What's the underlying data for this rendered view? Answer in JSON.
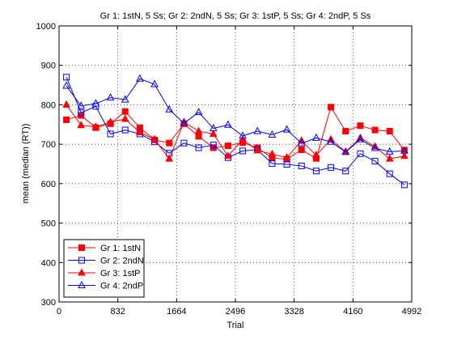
{
  "chart_data": {
    "type": "line",
    "title": "Gr 1: 1stN, 5 Ss; Gr 2: 2ndN, 5 Ss; Gr 3: 1stP, 5 Ss; Gr 4: 2ndP, 5 Ss",
    "xlabel": "Trial",
    "ylabel": "mean (median (RT))",
    "xlim": [
      0,
      4992
    ],
    "ylim": [
      300,
      1000
    ],
    "xticks": [
      0,
      832,
      1664,
      2496,
      3328,
      4160,
      4992
    ],
    "yticks": [
      300,
      400,
      500,
      600,
      700,
      800,
      900,
      1000
    ],
    "grid": "dotted",
    "legend_position": "bottom-left",
    "x": [
      104,
      312,
      520,
      728,
      936,
      1144,
      1352,
      1560,
      1768,
      1976,
      2184,
      2392,
      2600,
      2808,
      3016,
      3224,
      3432,
      3640,
      3848,
      4056,
      4264,
      4472,
      4680,
      4888
    ],
    "series": [
      {
        "name": "Gr 1: 1stN",
        "color": "#ff0000",
        "marker": "square-filled",
        "values": [
          762,
          773,
          742,
          752,
          783,
          742,
          711,
          703,
          752,
          720,
          691,
          696,
          704,
          691,
          665,
          662,
          686,
          664,
          794,
          733,
          747,
          736,
          733,
          685
        ]
      },
      {
        "name": "Gr 2: 2ndN",
        "color": "#0000ff",
        "marker": "square-open",
        "values": [
          870,
          780,
          796,
          726,
          736,
          726,
          706,
          677,
          703,
          691,
          698,
          666,
          683,
          686,
          651,
          649,
          645,
          632,
          641,
          632,
          676,
          657,
          625,
          597
        ]
      },
      {
        "name": "Gr 3: 1stP",
        "color": "#ff0000",
        "marker": "triangle-filled",
        "values": [
          800,
          748,
          744,
          756,
          764,
          730,
          712,
          663,
          756,
          733,
          726,
          670,
          712,
          684,
          675,
          666,
          709,
          672,
          712,
          681,
          716,
          694,
          663,
          670
        ]
      },
      {
        "name": "Gr 4: 2ndP",
        "color": "#0000ff",
        "marker": "triangle-open",
        "values": [
          848,
          797,
          803,
          818,
          813,
          866,
          852,
          788,
          753,
          781,
          740,
          749,
          721,
          733,
          724,
          737,
          702,
          716,
          706,
          680,
          712,
          690,
          681,
          683
        ]
      }
    ]
  }
}
